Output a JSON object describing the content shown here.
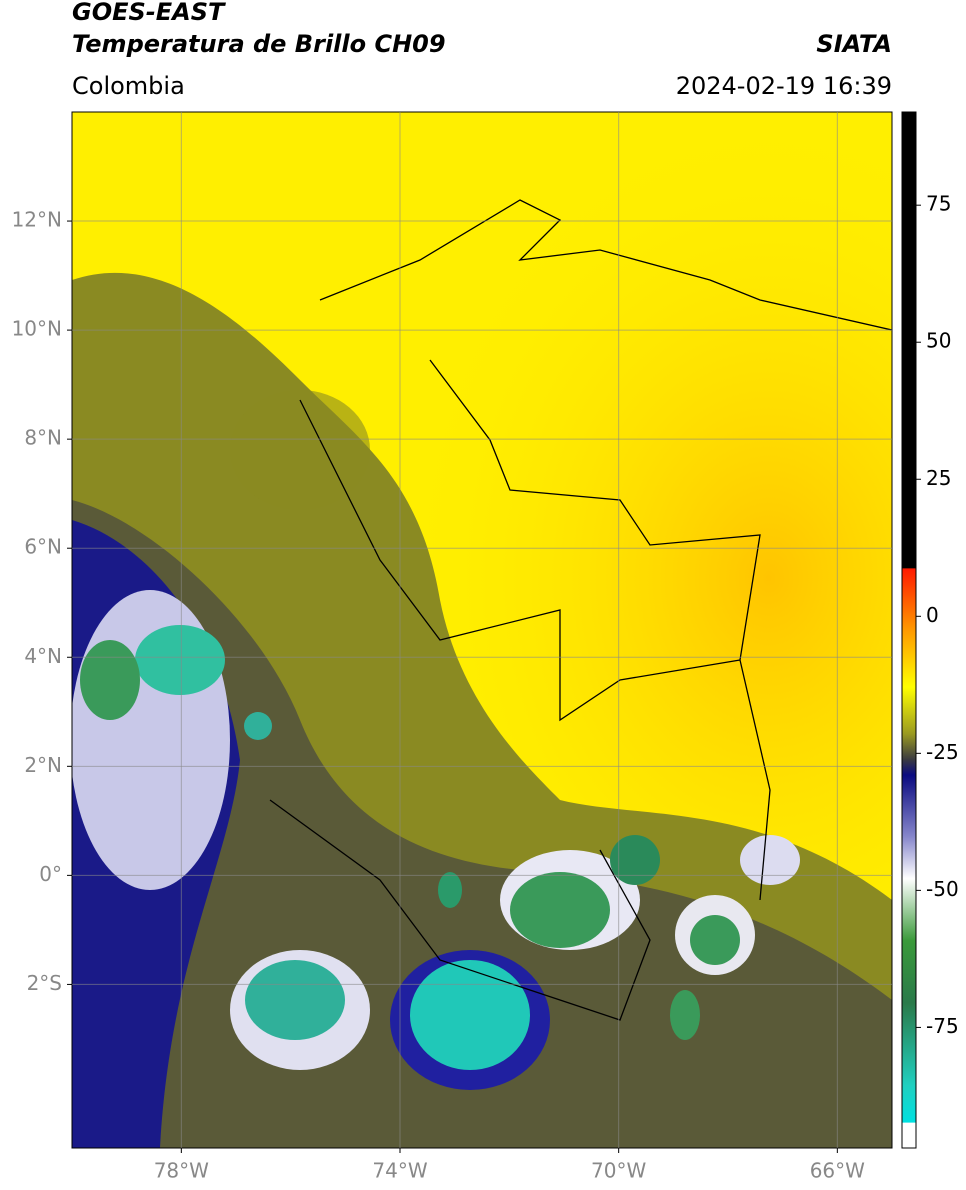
{
  "header": {
    "title_line1": "GOES-EAST",
    "title_line2": "Temperatura de Brillo CH09",
    "source": "SIATA",
    "region": "Colombia",
    "datetime": "2024-02-19 16:39"
  },
  "map": {
    "lonlim": [
      -80,
      -65
    ],
    "latlim": [
      -5,
      14
    ],
    "lonticks": [
      {
        "value": -78,
        "label": "78°W"
      },
      {
        "value": -74,
        "label": "74°W"
      },
      {
        "value": -70,
        "label": "70°W"
      },
      {
        "value": -66,
        "label": "66°W"
      }
    ],
    "latticks": [
      {
        "value": 12,
        "label": "12°N"
      },
      {
        "value": 10,
        "label": "10°N"
      },
      {
        "value": 8,
        "label": "8°N"
      },
      {
        "value": 6,
        "label": "6°N"
      },
      {
        "value": 4,
        "label": "4°N"
      },
      {
        "value": 2,
        "label": "2°N"
      },
      {
        "value": 0,
        "label": "0°"
      },
      {
        "value": -2,
        "label": "2°S"
      }
    ],
    "grid": true
  },
  "colorbar": {
    "lim": [
      -97,
      92
    ],
    "ticks": [
      75,
      50,
      25,
      0,
      -25,
      -50,
      -75
    ]
  }
}
